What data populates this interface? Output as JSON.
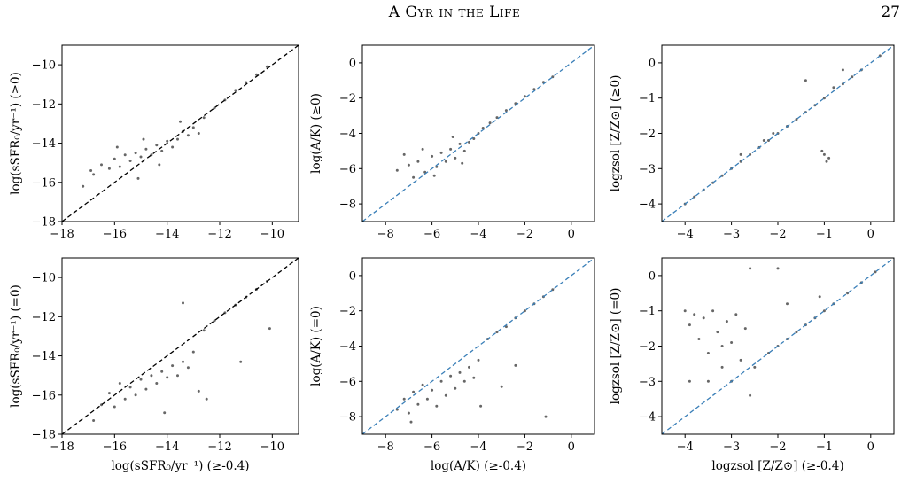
{
  "header": {
    "running_title": "A Gyr in the Life",
    "page_number": "27"
  },
  "chart_data": [
    {
      "type": "scatter",
      "panel": "top-left",
      "xlabel": "",
      "ylabel": "log(sSFR₀/yr⁻¹) (≥0)",
      "xlim": [
        -18,
        -9
      ],
      "ylim": [
        -18,
        -9
      ],
      "xticks": [
        -18,
        -16,
        -14,
        -12,
        -10
      ],
      "yticks": [
        -18,
        -16,
        -14,
        -12,
        -10
      ],
      "reference_line": {
        "style": "dashed",
        "color": "#000000"
      },
      "point_color": "#000000",
      "series": [
        {
          "points": [
            [
              -17.2,
              -16.2
            ],
            [
              -16.8,
              -15.6
            ],
            [
              -16.5,
              -15.1
            ],
            [
              -16.2,
              -15.3
            ],
            [
              -16.0,
              -14.8
            ],
            [
              -15.8,
              -15.2
            ],
            [
              -15.6,
              -14.6
            ],
            [
              -15.4,
              -14.9
            ],
            [
              -15.2,
              -14.5
            ],
            [
              -15.0,
              -14.7
            ],
            [
              -14.8,
              -14.3
            ],
            [
              -14.6,
              -14.6
            ],
            [
              -14.4,
              -14.1
            ],
            [
              -14.2,
              -14.4
            ],
            [
              -14.0,
              -13.9
            ],
            [
              -13.8,
              -14.2
            ],
            [
              -13.6,
              -13.8
            ],
            [
              -13.4,
              -13.4
            ],
            [
              -13.2,
              -13.6
            ],
            [
              -13.0,
              -13.2
            ],
            [
              -12.6,
              -12.7
            ],
            [
              -12.2,
              -12.2
            ],
            [
              -11.8,
              -11.8
            ],
            [
              -11.4,
              -11.3
            ],
            [
              -11.0,
              -10.9
            ],
            [
              -10.6,
              -10.5
            ],
            [
              -10.2,
              -10.1
            ],
            [
              -15.9,
              -14.2
            ],
            [
              -15.1,
              -15.8
            ],
            [
              -14.3,
              -15.1
            ],
            [
              -13.5,
              -12.9
            ],
            [
              -12.8,
              -13.5
            ],
            [
              -16.9,
              -15.4
            ],
            [
              -14.9,
              -13.8
            ]
          ]
        }
      ]
    },
    {
      "type": "scatter",
      "panel": "top-middle",
      "xlabel": "",
      "ylabel": "log(A/K) (≥0)",
      "xlim": [
        -9,
        1
      ],
      "ylim": [
        -9,
        1
      ],
      "xticks": [
        -8,
        -6,
        -4,
        -2,
        0
      ],
      "yticks": [
        -8,
        -6,
        -4,
        -2,
        0
      ],
      "reference_line": {
        "style": "dashed",
        "color": "#3a7fb8"
      },
      "point_color": "#000000",
      "series": [
        {
          "points": [
            [
              -7.5,
              -6.1
            ],
            [
              -7.0,
              -5.8
            ],
            [
              -6.6,
              -5.6
            ],
            [
              -6.3,
              -6.2
            ],
            [
              -6.0,
              -5.3
            ],
            [
              -5.8,
              -5.9
            ],
            [
              -5.6,
              -5.1
            ],
            [
              -5.4,
              -5.6
            ],
            [
              -5.2,
              -4.9
            ],
            [
              -5.0,
              -5.4
            ],
            [
              -4.8,
              -4.6
            ],
            [
              -4.6,
              -5.0
            ],
            [
              -4.4,
              -4.5
            ],
            [
              -4.2,
              -4.3
            ],
            [
              -4.0,
              -4.0
            ],
            [
              -3.8,
              -3.7
            ],
            [
              -3.5,
              -3.4
            ],
            [
              -3.2,
              -3.1
            ],
            [
              -2.8,
              -2.7
            ],
            [
              -2.4,
              -2.3
            ],
            [
              -2.0,
              -1.9
            ],
            [
              -1.6,
              -1.5
            ],
            [
              -1.2,
              -1.1
            ],
            [
              -0.8,
              -0.8
            ],
            [
              -6.8,
              -6.5
            ],
            [
              -5.9,
              -6.4
            ],
            [
              -5.1,
              -4.2
            ],
            [
              -6.4,
              -4.9
            ],
            [
              -4.7,
              -5.7
            ],
            [
              -7.2,
              -5.2
            ]
          ]
        }
      ]
    },
    {
      "type": "scatter",
      "panel": "top-right",
      "xlabel": "",
      "ylabel": "logzsol [Z/Z⊙] (≥0)",
      "xlim": [
        -4.5,
        0.5
      ],
      "ylim": [
        -4.5,
        0.5
      ],
      "xticks": [
        -4,
        -3,
        -2,
        -1,
        0
      ],
      "yticks": [
        -4,
        -3,
        -2,
        -1,
        0
      ],
      "reference_line": {
        "style": "dashed",
        "color": "#3a7fb8"
      },
      "point_color": "#000000",
      "series": [
        {
          "points": [
            [
              -4.0,
              -4.0
            ],
            [
              -3.8,
              -3.8
            ],
            [
              -3.6,
              -3.6
            ],
            [
              -3.4,
              -3.4
            ],
            [
              -3.2,
              -3.2
            ],
            [
              -3.0,
              -3.0
            ],
            [
              -2.8,
              -2.8
            ],
            [
              -2.6,
              -2.6
            ],
            [
              -2.4,
              -2.4
            ],
            [
              -2.2,
              -2.2
            ],
            [
              -2.0,
              -2.0
            ],
            [
              -1.8,
              -1.8
            ],
            [
              -1.6,
              -1.6
            ],
            [
              -1.4,
              -1.4
            ],
            [
              -1.2,
              -1.2
            ],
            [
              -1.0,
              -1.0
            ],
            [
              -0.8,
              -0.7
            ],
            [
              -0.6,
              -0.6
            ],
            [
              -0.4,
              -0.4
            ],
            [
              -0.2,
              -0.2
            ],
            [
              0.2,
              0.2
            ],
            [
              -1.0,
              -2.6
            ],
            [
              -0.95,
              -2.8
            ],
            [
              -1.05,
              -2.5
            ],
            [
              -0.9,
              -2.7
            ],
            [
              -2.1,
              -2.0
            ],
            [
              -2.3,
              -2.2
            ],
            [
              -0.6,
              -0.2
            ],
            [
              -1.4,
              -0.5
            ],
            [
              -2.8,
              -2.6
            ]
          ]
        }
      ]
    },
    {
      "type": "scatter",
      "panel": "bottom-left",
      "xlabel": "log(sSFR₀/yr⁻¹) (≥-0.4)",
      "ylabel": "log(sSFR₀/yr⁻¹) (=0)",
      "xlim": [
        -18,
        -9
      ],
      "ylim": [
        -18,
        -9
      ],
      "xticks": [
        -18,
        -16,
        -14,
        -12,
        -10
      ],
      "yticks": [
        -18,
        -16,
        -14,
        -12,
        -10
      ],
      "reference_line": {
        "style": "dashed",
        "color": "#000000"
      },
      "point_color": "#000000",
      "series": [
        {
          "points": [
            [
              -16.5,
              -16.5
            ],
            [
              -16.2,
              -15.9
            ],
            [
              -16.0,
              -16.6
            ],
            [
              -15.8,
              -15.4
            ],
            [
              -15.6,
              -16.2
            ],
            [
              -15.4,
              -15.6
            ],
            [
              -15.2,
              -16.0
            ],
            [
              -15.0,
              -15.2
            ],
            [
              -14.8,
              -15.7
            ],
            [
              -14.6,
              -15.0
            ],
            [
              -14.4,
              -15.4
            ],
            [
              -14.2,
              -14.8
            ],
            [
              -14.0,
              -15.1
            ],
            [
              -13.8,
              -14.5
            ],
            [
              -13.6,
              -15.0
            ],
            [
              -13.4,
              -14.3
            ],
            [
              -13.2,
              -14.6
            ],
            [
              -13.0,
              -13.8
            ],
            [
              -12.6,
              -12.7
            ],
            [
              -12.2,
              -12.2
            ],
            [
              -11.8,
              -11.8
            ],
            [
              -11.4,
              -11.4
            ],
            [
              -11.0,
              -11.0
            ],
            [
              -10.6,
              -10.6
            ],
            [
              -10.2,
              -10.2
            ],
            [
              -13.4,
              -11.3
            ],
            [
              -12.8,
              -15.8
            ],
            [
              -11.2,
              -14.3
            ],
            [
              -10.1,
              -12.6
            ],
            [
              -14.1,
              -16.9
            ],
            [
              -16.8,
              -17.3
            ],
            [
              -12.5,
              -16.2
            ]
          ]
        }
      ]
    },
    {
      "type": "scatter",
      "panel": "bottom-middle",
      "xlabel": "log(A/K) (≥-0.4)",
      "ylabel": "log(A/K) (=0)",
      "xlim": [
        -9,
        1
      ],
      "ylim": [
        -9,
        1
      ],
      "xticks": [
        -8,
        -6,
        -4,
        -2,
        0
      ],
      "yticks": [
        -8,
        -6,
        -4,
        -2,
        0
      ],
      "reference_line": {
        "style": "dashed",
        "color": "#3a7fb8"
      },
      "point_color": "#000000",
      "series": [
        {
          "points": [
            [
              -7.5,
              -7.6
            ],
            [
              -7.2,
              -7.0
            ],
            [
              -7.0,
              -7.8
            ],
            [
              -6.8,
              -6.6
            ],
            [
              -6.6,
              -7.3
            ],
            [
              -6.4,
              -6.2
            ],
            [
              -6.2,
              -7.0
            ],
            [
              -6.0,
              -6.5
            ],
            [
              -5.8,
              -7.4
            ],
            [
              -5.6,
              -6.0
            ],
            [
              -5.4,
              -6.8
            ],
            [
              -5.2,
              -5.7
            ],
            [
              -5.0,
              -6.4
            ],
            [
              -4.8,
              -5.5
            ],
            [
              -4.6,
              -6.0
            ],
            [
              -4.4,
              -5.2
            ],
            [
              -4.2,
              -5.8
            ],
            [
              -4.0,
              -4.8
            ],
            [
              -3.6,
              -3.6
            ],
            [
              -3.2,
              -3.2
            ],
            [
              -2.8,
              -2.9
            ],
            [
              -2.4,
              -2.4
            ],
            [
              -2.0,
              -2.0
            ],
            [
              -1.6,
              -1.6
            ],
            [
              -1.2,
              -1.2
            ],
            [
              -0.8,
              -0.8
            ],
            [
              -3.0,
              -6.3
            ],
            [
              -2.4,
              -5.1
            ],
            [
              -1.1,
              -8.0
            ],
            [
              -3.9,
              -7.4
            ],
            [
              -6.9,
              -8.3
            ]
          ]
        }
      ]
    },
    {
      "type": "scatter",
      "panel": "bottom-right",
      "xlabel": "logzsol [Z/Z⊙] (≥-0.4)",
      "ylabel": "logzsol [Z/Z⊙] (=0)",
      "xlim": [
        -4.5,
        0.5
      ],
      "ylim": [
        -4.5,
        0.5
      ],
      "xticks": [
        -4,
        -3,
        -2,
        -1,
        0
      ],
      "yticks": [
        -4,
        -3,
        -2,
        -1,
        0
      ],
      "reference_line": {
        "style": "dashed",
        "color": "#3a7fb8"
      },
      "point_color": "#000000",
      "series": [
        {
          "points": [
            [
              -4.0,
              -1.0
            ],
            [
              -3.9,
              -1.4
            ],
            [
              -3.8,
              -1.1
            ],
            [
              -3.7,
              -1.8
            ],
            [
              -3.6,
              -1.2
            ],
            [
              -3.5,
              -2.2
            ],
            [
              -3.4,
              -1.0
            ],
            [
              -3.3,
              -1.6
            ],
            [
              -3.2,
              -2.6
            ],
            [
              -3.1,
              -1.3
            ],
            [
              -3.0,
              -1.9
            ],
            [
              -2.9,
              -1.1
            ],
            [
              -2.8,
              -2.4
            ],
            [
              -2.7,
              -1.5
            ],
            [
              -3.5,
              -3.0
            ],
            [
              -3.2,
              -2.0
            ],
            [
              -3.0,
              -3.0
            ],
            [
              -2.5,
              -2.6
            ],
            [
              -2.2,
              -2.2
            ],
            [
              -2.0,
              -2.0
            ],
            [
              -1.8,
              -1.8
            ],
            [
              -1.6,
              -1.6
            ],
            [
              -1.4,
              -1.4
            ],
            [
              -1.2,
              -1.2
            ],
            [
              -1.0,
              -1.0
            ],
            [
              -0.8,
              -0.8
            ],
            [
              -0.5,
              -0.5
            ],
            [
              -0.2,
              -0.2
            ],
            [
              0.1,
              0.1
            ],
            [
              -2.6,
              0.2
            ],
            [
              -2.0,
              0.2
            ],
            [
              -1.1,
              -0.6
            ],
            [
              -3.9,
              -3.0
            ],
            [
              -2.6,
              -3.4
            ],
            [
              -1.8,
              -0.8
            ]
          ]
        }
      ]
    }
  ]
}
